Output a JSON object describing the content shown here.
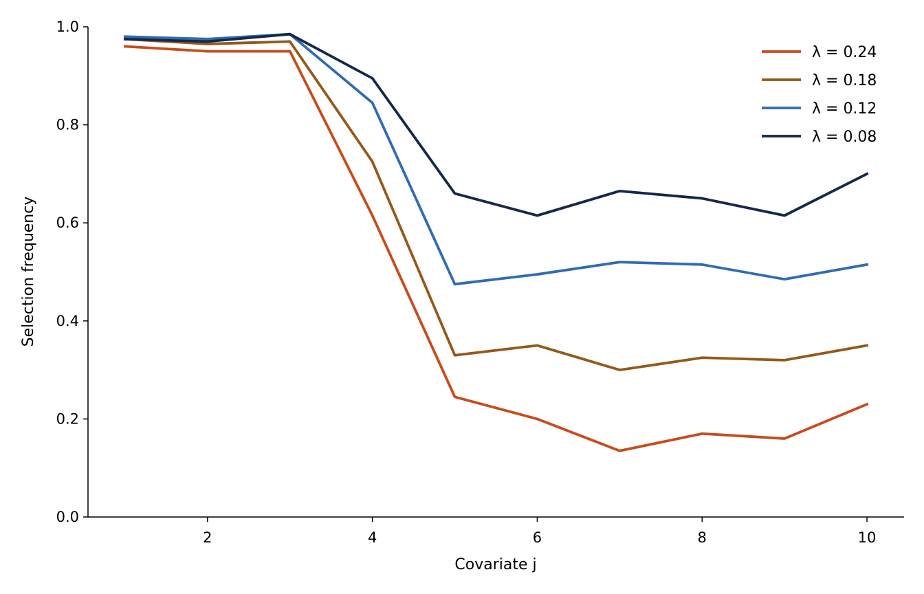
{
  "chart_data": {
    "type": "line",
    "title": "",
    "xlabel": "Covariate j",
    "ylabel": "Selection frequency",
    "xlim": [
      0.55,
      10.45
    ],
    "ylim": [
      0.0,
      1.0
    ],
    "xticks": [
      2,
      4,
      6,
      8,
      10
    ],
    "xtick_labels": [
      "2",
      "4",
      "6",
      "8",
      "10"
    ],
    "yticks": [
      0.0,
      0.2,
      0.4,
      0.6,
      0.8,
      1.0
    ],
    "ytick_labels": [
      "0.0",
      "0.2",
      "0.4",
      "0.6",
      "0.8",
      "1.0"
    ],
    "grid": false,
    "legend_position": "top-right",
    "x": [
      1,
      2,
      3,
      4,
      5,
      6,
      7,
      8,
      9,
      10
    ],
    "series": [
      {
        "name": "λ = 0.24",
        "color": "#c84b1c",
        "values": [
          0.96,
          0.95,
          0.95,
          0.615,
          0.245,
          0.2,
          0.135,
          0.17,
          0.16,
          0.23
        ]
      },
      {
        "name": "λ = 0.18",
        "color": "#94591a",
        "values": [
          0.975,
          0.965,
          0.97,
          0.725,
          0.33,
          0.35,
          0.3,
          0.325,
          0.32,
          0.35
        ]
      },
      {
        "name": "λ = 0.12",
        "color": "#2f6cb3",
        "values": [
          0.98,
          0.975,
          0.985,
          0.845,
          0.475,
          0.495,
          0.52,
          0.515,
          0.485,
          0.515
        ]
      },
      {
        "name": "λ = 0.08",
        "color": "#15284a",
        "values": [
          0.975,
          0.97,
          0.985,
          0.895,
          0.66,
          0.615,
          0.665,
          0.65,
          0.615,
          0.7
        ]
      }
    ]
  }
}
